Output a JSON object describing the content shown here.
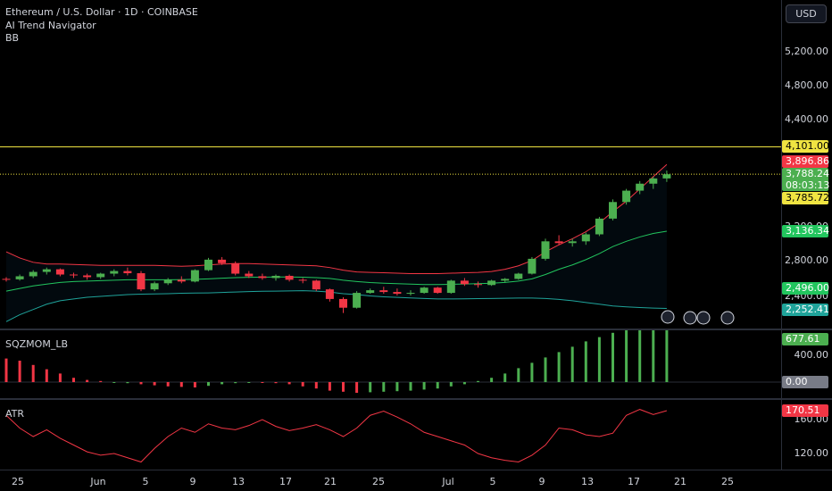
{
  "legend": {
    "symbol": "Ethereum / U.S. Dollar · 1D · COINBASE",
    "indicator1": "AI Trend Navigator",
    "indicator2": "BB",
    "sqz": "SQZMOM_LB",
    "atr": "ATR"
  },
  "axis": {
    "currency_button": "USD",
    "price_ticks": [
      "5,200.00",
      "4,800.00",
      "4,400.00",
      "2,800.00",
      "2,400.00",
      "3,200.00"
    ],
    "sqz_ticks": [
      "400.00"
    ],
    "atr_ticks": [
      "160.00",
      "120.00"
    ]
  },
  "tags": {
    "level": "4,101.00",
    "bb_upper": "3,896.86",
    "last_price": "3,788.24",
    "countdown": "08:03:13",
    "nav": "3,785.72",
    "bb_mid": "3,136.34",
    "level2": "2,496.00",
    "bb_lower": "2,252.41",
    "sqz_value": "677.61",
    "sqz_zero": "0.00",
    "atr_value": "170.51"
  },
  "time_axis": [
    "25",
    "Jun",
    "5",
    "9",
    "13",
    "17",
    "21",
    "25",
    "Jul",
    "5",
    "9",
    "13",
    "17",
    "21",
    "25"
  ],
  "colors": {
    "up": "#4caf50",
    "down": "#f23645",
    "level_line": "#f0e442",
    "bb_upper": "#f23645",
    "bb_mid": "#22c55e",
    "bb_lower": "#1fa39a",
    "atr": "#f23645"
  },
  "chart_data": [
    {
      "type": "candlestick",
      "title": "Ethereum / U.S. Dollar · 1D · COINBASE",
      "price_range": [
        2250,
        5400
      ],
      "ohlc": [
        [
          2590,
          2610,
          2560,
          2585
        ],
        [
          2585,
          2640,
          2570,
          2620
        ],
        [
          2620,
          2690,
          2600,
          2670
        ],
        [
          2670,
          2720,
          2640,
          2700
        ],
        [
          2700,
          2710,
          2620,
          2640
        ],
        [
          2640,
          2660,
          2600,
          2630
        ],
        [
          2630,
          2650,
          2580,
          2610
        ],
        [
          2610,
          2660,
          2590,
          2650
        ],
        [
          2650,
          2700,
          2620,
          2680
        ],
        [
          2680,
          2720,
          2630,
          2655
        ],
        [
          2655,
          2680,
          2450,
          2470
        ],
        [
          2470,
          2560,
          2450,
          2540
        ],
        [
          2540,
          2600,
          2520,
          2580
        ],
        [
          2580,
          2620,
          2540,
          2560
        ],
        [
          2560,
          2700,
          2550,
          2690
        ],
        [
          2690,
          2830,
          2680,
          2810
        ],
        [
          2810,
          2840,
          2750,
          2770
        ],
        [
          2770,
          2790,
          2630,
          2650
        ],
        [
          2650,
          2680,
          2600,
          2620
        ],
        [
          2620,
          2650,
          2580,
          2600
        ],
        [
          2600,
          2640,
          2570,
          2625
        ],
        [
          2625,
          2640,
          2560,
          2580
        ],
        [
          2580,
          2600,
          2540,
          2570
        ],
        [
          2570,
          2580,
          2450,
          2470
        ],
        [
          2470,
          2480,
          2330,
          2360
        ],
        [
          2360,
          2380,
          2200,
          2260
        ],
        [
          2260,
          2450,
          2250,
          2430
        ],
        [
          2430,
          2480,
          2420,
          2460
        ],
        [
          2460,
          2500,
          2420,
          2440
        ],
        [
          2440,
          2480,
          2400,
          2420
        ],
        [
          2420,
          2460,
          2400,
          2430
        ],
        [
          2430,
          2500,
          2420,
          2490
        ],
        [
          2490,
          2500,
          2420,
          2430
        ],
        [
          2430,
          2580,
          2420,
          2570
        ],
        [
          2570,
          2600,
          2510,
          2530
        ],
        [
          2530,
          2560,
          2490,
          2520
        ],
        [
          2520,
          2580,
          2510,
          2570
        ],
        [
          2570,
          2600,
          2550,
          2590
        ],
        [
          2590,
          2660,
          2580,
          2650
        ],
        [
          2650,
          2840,
          2640,
          2820
        ],
        [
          2820,
          3050,
          2800,
          3020
        ],
        [
          3020,
          3090,
          2980,
          3000
        ],
        [
          3000,
          3050,
          2960,
          3020
        ],
        [
          3020,
          3120,
          2980,
          3100
        ],
        [
          3100,
          3300,
          3080,
          3280
        ],
        [
          3280,
          3500,
          3260,
          3470
        ],
        [
          3470,
          3620,
          3440,
          3600
        ],
        [
          3600,
          3710,
          3560,
          3680
        ],
        [
          3680,
          3760,
          3620,
          3740
        ],
        [
          3740,
          3830,
          3700,
          3788
        ]
      ],
      "bb_upper": [
        2900,
        2830,
        2780,
        2760,
        2760,
        2755,
        2750,
        2745,
        2745,
        2745,
        2745,
        2745,
        2740,
        2735,
        2740,
        2750,
        2760,
        2765,
        2765,
        2760,
        2755,
        2750,
        2745,
        2740,
        2720,
        2690,
        2670,
        2665,
        2660,
        2655,
        2650,
        2650,
        2650,
        2655,
        2660,
        2665,
        2675,
        2700,
        2740,
        2800,
        2900,
        2980,
        3050,
        3130,
        3230,
        3360,
        3480,
        3620,
        3760,
        3900
      ],
      "bb_mid": [
        2450,
        2480,
        2510,
        2530,
        2550,
        2560,
        2565,
        2570,
        2575,
        2580,
        2580,
        2580,
        2580,
        2582,
        2585,
        2590,
        2598,
        2605,
        2608,
        2610,
        2612,
        2612,
        2610,
        2605,
        2595,
        2575,
        2560,
        2548,
        2540,
        2535,
        2530,
        2525,
        2525,
        2528,
        2532,
        2535,
        2540,
        2550,
        2565,
        2590,
        2640,
        2700,
        2750,
        2810,
        2880,
        2960,
        3020,
        3070,
        3110,
        3136
      ],
      "bb_lower": [
        2100,
        2180,
        2240,
        2300,
        2340,
        2360,
        2380,
        2390,
        2400,
        2410,
        2415,
        2418,
        2420,
        2425,
        2428,
        2430,
        2435,
        2440,
        2445,
        2448,
        2450,
        2452,
        2455,
        2450,
        2440,
        2420,
        2410,
        2395,
        2385,
        2378,
        2372,
        2365,
        2360,
        2360,
        2362,
        2364,
        2366,
        2368,
        2370,
        2370,
        2365,
        2355,
        2340,
        2320,
        2300,
        2280,
        2270,
        2262,
        2256,
        2252
      ],
      "nav": [
        2500,
        2530,
        2560,
        2580,
        2590,
        2600,
        2600,
        2605,
        2610,
        2615,
        2610,
        2600,
        2595,
        2590,
        2595,
        2610,
        2620,
        2620,
        2615,
        2610,
        2605,
        2600,
        2595,
        2585,
        2560,
        2530,
        2500,
        2480,
        2470,
        2465,
        2460,
        2460,
        2465,
        2470,
        2478,
        2485,
        2492,
        2500,
        2515,
        2540,
        2600,
        2680,
        2760,
        2860,
        2980,
        3120,
        3280,
        3450,
        3620,
        3785
      ],
      "levels": [
        4101,
        3788.24
      ]
    },
    {
      "type": "bar",
      "title": "SQZMOM_LB",
      "ylim": [
        -120,
        720
      ],
      "values": [
        220,
        200,
        160,
        120,
        80,
        40,
        20,
        10,
        -5,
        -10,
        -20,
        -30,
        -40,
        -45,
        -50,
        -35,
        -20,
        -10,
        -5,
        -5,
        -10,
        -20,
        -40,
        -60,
        -80,
        -90,
        -100,
        -95,
        -90,
        -85,
        -80,
        -70,
        -60,
        -40,
        -20,
        10,
        40,
        80,
        130,
        180,
        230,
        280,
        330,
        380,
        420,
        460,
        510,
        560,
        620,
        677.61
      ],
      "colors": [
        "d",
        "d",
        "d",
        "d",
        "d",
        "d",
        "d",
        "d",
        "u",
        "u",
        "d",
        "d",
        "d",
        "d",
        "d",
        "u",
        "u",
        "u",
        "u",
        "d",
        "d",
        "d",
        "d",
        "d",
        "d",
        "d",
        "d",
        "u",
        "u",
        "u",
        "u",
        "u",
        "u",
        "u",
        "u",
        "u",
        "u",
        "u",
        "u",
        "u",
        "u",
        "u",
        "u",
        "u",
        "u",
        "u",
        "u",
        "u",
        "u",
        "u"
      ]
    },
    {
      "type": "line",
      "title": "ATR",
      "ylim": [
        100,
        180
      ],
      "values": [
        165,
        150,
        140,
        148,
        138,
        130,
        122,
        118,
        120,
        115,
        110,
        126,
        140,
        150,
        145,
        155,
        150,
        148,
        153,
        160,
        152,
        147,
        150,
        154,
        148,
        140,
        150,
        165,
        170,
        163,
        155,
        145,
        140,
        135,
        130,
        120,
        115,
        112,
        110,
        118,
        130,
        150,
        148,
        142,
        140,
        144,
        165,
        172,
        166,
        170.51
      ]
    }
  ]
}
